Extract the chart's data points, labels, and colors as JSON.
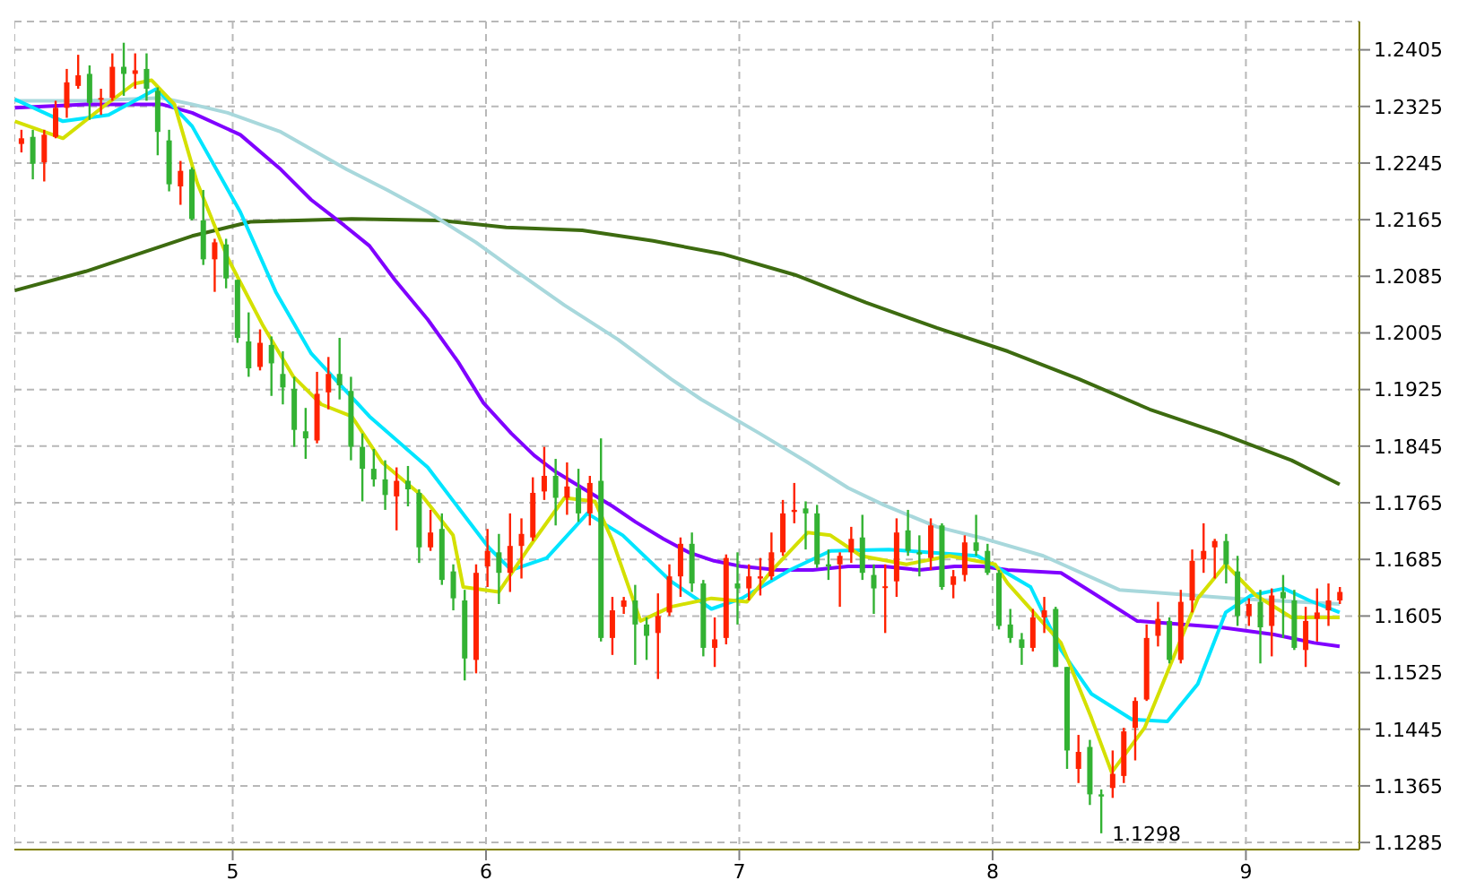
{
  "chart_data": {
    "type": "candlestick",
    "x": [
      4.166,
      4.211,
      4.256,
      4.301,
      4.345,
      4.39,
      4.435,
      4.48,
      4.525,
      4.57,
      4.615,
      4.66,
      4.704,
      4.749,
      4.794,
      4.839,
      4.884,
      4.929,
      4.974,
      5.019,
      5.063,
      5.108,
      5.153,
      5.198,
      5.243,
      5.288,
      5.333,
      5.378,
      5.422,
      5.467,
      5.512,
      5.557,
      5.602,
      5.647,
      5.692,
      5.736,
      5.781,
      5.826,
      5.871,
      5.916,
      5.961,
      6.006,
      6.051,
      6.095,
      6.14,
      6.185,
      6.23,
      6.275,
      6.32,
      6.365,
      6.41,
      6.454,
      6.499,
      6.544,
      6.589,
      6.634,
      6.679,
      6.724,
      6.768,
      6.813,
      6.858,
      6.903,
      6.948,
      6.993,
      7.038,
      7.083,
      7.127,
      7.172,
      7.217,
      7.262,
      7.307,
      7.352,
      7.397,
      7.442,
      7.486,
      7.531,
      7.576,
      7.621,
      7.666,
      7.711,
      7.756,
      7.8,
      7.845,
      7.89,
      7.935,
      7.98,
      8.025,
      8.07,
      8.115,
      8.159,
      8.204,
      8.249,
      8.294,
      8.339,
      8.384,
      8.429,
      8.474,
      8.518,
      8.563,
      8.608,
      8.653,
      8.698,
      8.743,
      8.788,
      8.833,
      8.877,
      8.922,
      8.967,
      9.012,
      9.057,
      9.102,
      9.147,
      9.191,
      9.236,
      9.281,
      9.326,
      9.371
    ],
    "ohlc": [
      [
        1.2272,
        1.2292,
        1.226,
        1.228
      ],
      [
        1.2282,
        1.2292,
        1.2222,
        1.2244
      ],
      [
        1.2246,
        1.2292,
        1.2219,
        1.2285
      ],
      [
        1.2282,
        1.2333,
        1.228,
        1.2323
      ],
      [
        1.2323,
        1.2378,
        1.2309,
        1.2359
      ],
      [
        1.2354,
        1.2398,
        1.235,
        1.2369
      ],
      [
        1.2371,
        1.2383,
        1.2306,
        1.233
      ],
      [
        1.2335,
        1.235,
        1.2313,
        1.2337
      ],
      [
        1.2337,
        1.24,
        1.2333,
        1.2381
      ],
      [
        1.2381,
        1.2415,
        1.234,
        1.2371
      ],
      [
        1.2371,
        1.24,
        1.235,
        1.2376
      ],
      [
        1.2378,
        1.24,
        1.2333,
        1.235
      ],
      [
        1.2347,
        1.2352,
        1.2256,
        1.2289
      ],
      [
        1.2277,
        1.2292,
        1.2205,
        1.2215
      ],
      [
        1.2212,
        1.2248,
        1.2186,
        1.2234
      ],
      [
        1.2236,
        1.2239,
        1.2164,
        1.2166
      ],
      [
        1.2164,
        1.2207,
        1.2101,
        1.2109
      ],
      [
        1.2109,
        1.2138,
        1.2063,
        1.2133
      ],
      [
        1.213,
        1.2138,
        1.2068,
        1.2082
      ],
      [
        1.208,
        1.208,
        1.1991,
        1.1998
      ],
      [
        1.1993,
        1.2034,
        1.1943,
        1.1955
      ],
      [
        1.1957,
        1.201,
        1.1952,
        1.1991
      ],
      [
        1.1988,
        1.2,
        1.1916,
        1.1962
      ],
      [
        1.1947,
        1.1979,
        1.1904,
        1.1928
      ],
      [
        1.1926,
        1.1943,
        1.1844,
        1.1868
      ],
      [
        1.1866,
        1.1899,
        1.1827,
        1.1856
      ],
      [
        1.1853,
        1.195,
        1.1849,
        1.1919
      ],
      [
        1.1921,
        1.1971,
        1.1897,
        1.1947
      ],
      [
        1.1947,
        1.1998,
        1.1911,
        1.1931
      ],
      [
        1.1923,
        1.1943,
        1.1825,
        1.1844
      ],
      [
        1.1844,
        1.1863,
        1.1767,
        1.1813
      ],
      [
        1.1813,
        1.1841,
        1.1788,
        1.1798
      ],
      [
        1.1798,
        1.1825,
        1.1755,
        1.1776
      ],
      [
        1.1774,
        1.1815,
        1.1726,
        1.1796
      ],
      [
        1.1796,
        1.1817,
        1.176,
        1.1784
      ],
      [
        1.1779,
        1.1784,
        1.168,
        1.1702
      ],
      [
        1.1702,
        1.1755,
        1.1697,
        1.1723
      ],
      [
        1.1728,
        1.175,
        1.1649,
        1.1656
      ],
      [
        1.1668,
        1.1678,
        1.1613,
        1.163
      ],
      [
        1.1627,
        1.1642,
        1.1514,
        1.1545
      ],
      [
        1.1543,
        1.1678,
        1.1524,
        1.1666
      ],
      [
        1.1675,
        1.1728,
        1.1646,
        1.1697
      ],
      [
        1.1695,
        1.1721,
        1.1622,
        1.1666
      ],
      [
        1.1666,
        1.175,
        1.1639,
        1.1704
      ],
      [
        1.1704,
        1.1743,
        1.1658,
        1.1721
      ],
      [
        1.1716,
        1.1801,
        1.1711,
        1.1779
      ],
      [
        1.1781,
        1.1844,
        1.1769,
        1.1803
      ],
      [
        1.1803,
        1.1827,
        1.1733,
        1.1772
      ],
      [
        1.1772,
        1.1822,
        1.1748,
        1.1788
      ],
      [
        1.1786,
        1.1813,
        1.1738,
        1.175
      ],
      [
        1.175,
        1.1803,
        1.1733,
        1.1793
      ],
      [
        1.1796,
        1.1856,
        1.1569,
        1.1574
      ],
      [
        1.1574,
        1.1632,
        1.155,
        1.1613
      ],
      [
        1.1618,
        1.1632,
        1.1608,
        1.1627
      ],
      [
        1.1627,
        1.1649,
        1.1536,
        1.1593
      ],
      [
        1.1593,
        1.1603,
        1.1543,
        1.1577
      ],
      [
        1.1581,
        1.1637,
        1.1516,
        1.1605
      ],
      [
        1.161,
        1.1678,
        1.1605,
        1.1661
      ],
      [
        1.1661,
        1.1716,
        1.1632,
        1.1707
      ],
      [
        1.1707,
        1.1723,
        1.1639,
        1.1651
      ],
      [
        1.1651,
        1.1656,
        1.1548,
        1.156
      ],
      [
        1.156,
        1.1603,
        1.1533,
        1.1572
      ],
      [
        1.1574,
        1.1692,
        1.1565,
        1.1687
      ],
      [
        1.1651,
        1.1695,
        1.1593,
        1.1644
      ],
      [
        1.1644,
        1.1678,
        1.1627,
        1.1661
      ],
      [
        1.1658,
        1.1687,
        1.1634,
        1.1661
      ],
      [
        1.1661,
        1.1723,
        1.1656,
        1.1695
      ],
      [
        1.1695,
        1.1769,
        1.169,
        1.175
      ],
      [
        1.1752,
        1.1793,
        1.1736,
        1.1755
      ],
      [
        1.1757,
        1.1767,
        1.1699,
        1.175
      ],
      [
        1.175,
        1.1762,
        1.1673,
        1.1678
      ],
      [
        1.1678,
        1.1699,
        1.1656,
        1.1675
      ],
      [
        1.1678,
        1.1695,
        1.1618,
        1.169
      ],
      [
        1.1695,
        1.1731,
        1.168,
        1.1714
      ],
      [
        1.1716,
        1.1748,
        1.1656,
        1.1666
      ],
      [
        1.1663,
        1.1678,
        1.1608,
        1.1644
      ],
      [
        1.1645,
        1.1678,
        1.1581,
        1.1647
      ],
      [
        1.1654,
        1.1743,
        1.1632,
        1.1723
      ],
      [
        1.1726,
        1.1755,
        1.169,
        1.1697
      ],
      [
        1.1695,
        1.1719,
        1.1661,
        1.1692
      ],
      [
        1.1687,
        1.1743,
        1.167,
        1.1733
      ],
      [
        1.1733,
        1.1736,
        1.1642,
        1.1646
      ],
      [
        1.1649,
        1.167,
        1.163,
        1.1661
      ],
      [
        1.1663,
        1.1719,
        1.1654,
        1.1709
      ],
      [
        1.1709,
        1.1748,
        1.169,
        1.1697
      ],
      [
        1.1697,
        1.1707,
        1.1663,
        1.1666
      ],
      [
        1.1666,
        1.167,
        1.1586,
        1.1591
      ],
      [
        1.1593,
        1.1615,
        1.1567,
        1.1574
      ],
      [
        1.1572,
        1.1581,
        1.1536,
        1.156
      ],
      [
        1.156,
        1.1615,
        1.1555,
        1.1603
      ],
      [
        1.1603,
        1.1632,
        1.1581,
        1.1613
      ],
      [
        1.1615,
        1.1618,
        1.1533,
        1.1533
      ],
      [
        1.1533,
        1.1533,
        1.1389,
        1.1415
      ],
      [
        1.1389,
        1.1437,
        1.1369,
        1.1413
      ],
      [
        1.142,
        1.143,
        1.1338,
        1.1353
      ],
      [
        1.1353,
        1.136,
        1.1298,
        1.135
      ],
      [
        1.1362,
        1.1415,
        1.1348,
        1.1382
      ],
      [
        1.1379,
        1.1447,
        1.1369,
        1.1442
      ],
      [
        1.1447,
        1.149,
        1.1401,
        1.1485
      ],
      [
        1.1487,
        1.1593,
        1.1485,
        1.1574
      ],
      [
        1.1577,
        1.1625,
        1.1562,
        1.1601
      ],
      [
        1.1598,
        1.1603,
        1.1538,
        1.1543
      ],
      [
        1.1543,
        1.1642,
        1.1538,
        1.1625
      ],
      [
        1.1627,
        1.1699,
        1.161,
        1.1683
      ],
      [
        1.1685,
        1.1736,
        1.1666,
        1.1697
      ],
      [
        1.1702,
        1.1714,
        1.1658,
        1.1711
      ],
      [
        1.1711,
        1.1721,
        1.1651,
        1.1678
      ],
      [
        1.1668,
        1.169,
        1.1591,
        1.1605
      ],
      [
        1.1605,
        1.163,
        1.1591,
        1.1622
      ],
      [
        1.1625,
        1.1642,
        1.1538,
        1.1589
      ],
      [
        1.1591,
        1.1644,
        1.1548,
        1.1634
      ],
      [
        1.1639,
        1.1663,
        1.1574,
        1.163
      ],
      [
        1.1627,
        1.1642,
        1.1557,
        1.156
      ],
      [
        1.1557,
        1.1618,
        1.1533,
        1.1598
      ],
      [
        1.1601,
        1.1644,
        1.1569,
        1.161
      ],
      [
        1.1613,
        1.1651,
        1.1591,
        1.1627
      ],
      [
        1.1627,
        1.1646,
        1.1622,
        1.1639
      ]
    ],
    "colors": [
      "#ff2200",
      "#33b233",
      "#ff2200",
      "#ff2200",
      "#ff2200",
      "#ff2200",
      "#33b233",
      "#ff2200",
      "#ff2200",
      "#33b233",
      "#ff2200",
      "#33b233",
      "#33b233",
      "#33b233",
      "#ff2200",
      "#33b233",
      "#33b233",
      "#ff2200",
      "#33b233",
      "#33b233",
      "#33b233",
      "#ff2200",
      "#33b233",
      "#33b233",
      "#33b233",
      "#33b233",
      "#ff2200",
      "#ff2200",
      "#33b233",
      "#33b233",
      "#33b233",
      "#33b233",
      "#33b233",
      "#ff2200",
      "#33b233",
      "#33b233",
      "#ff2200",
      "#33b233",
      "#33b233",
      "#33b233",
      "#ff2200",
      "#ff2200",
      "#33b233",
      "#ff2200",
      "#ff2200",
      "#ff2200",
      "#ff2200",
      "#33b233",
      "#ff2200",
      "#33b233",
      "#ff2200",
      "#33b233",
      "#ff2200",
      "#ff2200",
      "#33b233",
      "#33b233",
      "#ff2200",
      "#ff2200",
      "#ff2200",
      "#33b233",
      "#33b233",
      "#ff2200",
      "#ff2200",
      "#33b233",
      "#ff2200",
      "#ff2200",
      "#ff2200",
      "#ff2200",
      "#ff2200",
      "#33b233",
      "#33b233",
      "#33b233",
      "#ff2200",
      "#ff2200",
      "#33b233",
      "#33b233",
      "#ff2200",
      "#ff2200",
      "#33b233",
      "#33b233",
      "#ff2200",
      "#33b233",
      "#ff2200",
      "#ff2200",
      "#33b233",
      "#33b233",
      "#33b233",
      "#33b233",
      "#33b233",
      "#ff2200",
      "#ff2200",
      "#33b233",
      "#33b233",
      "#ff2200",
      "#33b233",
      "#33b233",
      "#ff2200",
      "#ff2200",
      "#ff2200",
      "#ff2200",
      "#ff2200",
      "#33b233",
      "#ff2200",
      "#ff2200",
      "#ff2200",
      "#ff2200",
      "#33b233",
      "#33b233",
      "#ff2200",
      "#33b233",
      "#ff2200",
      "#33b233",
      "#33b233",
      "#ff2200",
      "#ff2200",
      "#ff2200",
      "#ff2200"
    ],
    "series": [
      {
        "type": "line",
        "color": "#3d6b10",
        "x": [
          4.14,
          4.42,
          4.84,
          5.07,
          5.47,
          5.82,
          6.08,
          6.38,
          6.66,
          6.94,
          7.22,
          7.5,
          7.78,
          8.06,
          8.34,
          8.62,
          8.9,
          9.18,
          9.37
        ],
        "values": [
          1.2065,
          1.2092,
          1.2142,
          1.2162,
          1.2166,
          1.2164,
          1.2154,
          1.215,
          1.2135,
          1.2116,
          1.2087,
          1.2048,
          1.2012,
          1.1979,
          1.194,
          1.1897,
          1.1863,
          1.1825,
          1.1791
        ]
      },
      {
        "type": "line",
        "color": "#a8d8dc",
        "x": [
          4.14,
          4.42,
          4.72,
          4.84,
          4.98,
          5.19,
          5.45,
          5.61,
          5.77,
          5.96,
          6.1,
          6.31,
          6.52,
          6.73,
          6.85,
          7.08,
          7.27,
          7.43,
          7.57,
          7.78,
          7.97,
          8.2,
          8.5,
          8.95,
          9.37
        ],
        "values": [
          1.2333,
          1.2333,
          1.2337,
          1.2328,
          1.2316,
          1.2289,
          1.2236,
          1.2207,
          1.2176,
          1.2133,
          1.2097,
          1.2044,
          1.1996,
          1.194,
          1.1911,
          1.1863,
          1.1822,
          1.1786,
          1.1762,
          1.1731,
          1.1714,
          1.169,
          1.1642,
          1.163,
          1.1622
        ]
      },
      {
        "type": "line",
        "color": "#8000ff",
        "x": [
          4.14,
          4.42,
          4.72,
          4.84,
          5.03,
          5.19,
          5.31,
          5.44,
          5.54,
          5.64,
          5.77,
          5.89,
          5.99,
          6.1,
          6.19,
          6.27,
          6.38,
          6.5,
          6.59,
          6.7,
          6.8,
          6.9,
          7.01,
          7.15,
          7.29,
          7.43,
          7.57,
          7.71,
          7.85,
          7.96,
          8.06,
          8.27,
          8.39,
          8.57,
          8.9,
          9.11,
          9.27,
          9.37
        ],
        "values": [
          1.2323,
          1.2328,
          1.2328,
          1.2316,
          1.2285,
          1.2236,
          1.2193,
          1.2157,
          1.2128,
          1.208,
          1.2024,
          1.1964,
          1.1906,
          1.1863,
          1.1832,
          1.181,
          1.1786,
          1.176,
          1.1738,
          1.1714,
          1.1695,
          1.1683,
          1.1675,
          1.167,
          1.167,
          1.1675,
          1.1675,
          1.167,
          1.1675,
          1.1675,
          1.167,
          1.1666,
          1.1639,
          1.1598,
          1.1589,
          1.1579,
          1.1567,
          1.1562
        ]
      },
      {
        "type": "line",
        "color": "#00e5ff",
        "x": [
          4.14,
          4.33,
          4.51,
          4.7,
          4.84,
          5.03,
          5.17,
          5.31,
          5.54,
          5.77,
          6.01,
          6.1,
          6.24,
          6.4,
          6.54,
          6.73,
          6.89,
          7.01,
          7.2,
          7.36,
          7.59,
          7.94,
          8.15,
          8.27,
          8.39,
          8.55,
          8.69,
          8.81,
          8.92,
          9.02,
          9.15,
          9.25,
          9.37
        ],
        "values": [
          1.2335,
          1.2304,
          1.2313,
          1.235,
          1.2297,
          1.2176,
          1.2063,
          1.1976,
          1.1887,
          1.1815,
          1.1702,
          1.167,
          1.1687,
          1.175,
          1.1719,
          1.1654,
          1.1615,
          1.163,
          1.167,
          1.1697,
          1.1699,
          1.169,
          1.1646,
          1.1557,
          1.1495,
          1.1459,
          1.1456,
          1.1509,
          1.161,
          1.1634,
          1.1644,
          1.1627,
          1.161
        ]
      },
      {
        "type": "line",
        "color": "#d4e000",
        "x": [
          4.14,
          4.33,
          4.49,
          4.61,
          4.68,
          4.77,
          4.86,
          4.98,
          5.12,
          5.24,
          5.35,
          5.47,
          5.59,
          5.75,
          5.87,
          5.91,
          6.05,
          6.17,
          6.31,
          6.43,
          6.5,
          6.61,
          6.73,
          6.89,
          7.03,
          7.13,
          7.27,
          7.36,
          7.48,
          7.66,
          7.83,
          8.01,
          8.06,
          8.27,
          8.39,
          8.47,
          8.6,
          8.71,
          8.81,
          8.92,
          9.04,
          9.18,
          9.37
        ],
        "values": [
          1.2304,
          1.228,
          1.2325,
          1.2357,
          1.2362,
          1.2328,
          1.2217,
          1.2111,
          1.2015,
          1.1943,
          1.1904,
          1.1887,
          1.1822,
          1.1774,
          1.1719,
          1.1646,
          1.1639,
          1.1702,
          1.1772,
          1.1767,
          1.1711,
          1.1598,
          1.1618,
          1.163,
          1.1625,
          1.167,
          1.1723,
          1.1719,
          1.169,
          1.1678,
          1.169,
          1.1678,
          1.1651,
          1.1567,
          1.1461,
          1.1384,
          1.1447,
          1.1543,
          1.163,
          1.1678,
          1.1634,
          1.1603,
          1.1603
        ]
      }
    ],
    "xlim": [
      4.138,
      9.448
    ],
    "xticks": [
      5,
      6,
      7,
      8,
      9
    ],
    "ylim": [
      1.1275,
      1.2445
    ],
    "yticks": [
      1.2405,
      1.2325,
      1.2245,
      1.2165,
      1.2085,
      1.2005,
      1.1925,
      1.1845,
      1.1765,
      1.1685,
      1.1605,
      1.1525,
      1.1445,
      1.1365,
      1.1285
    ],
    "grid": true,
    "annotations": [
      {
        "text": "1.1298",
        "x": 8.429,
        "y": 1.1298
      }
    ]
  }
}
